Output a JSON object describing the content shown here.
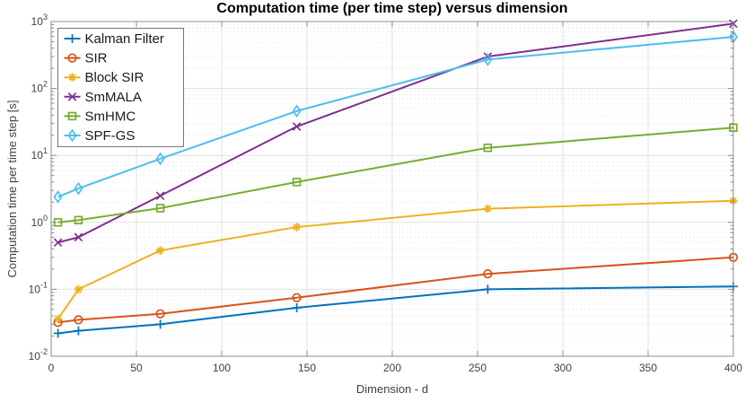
{
  "figure": {
    "title": "Computation time (per time step) versus dimension",
    "xlabel": "Dimension - d",
    "ylabel": "Computation time per time step [s]"
  },
  "chart_data": {
    "type": "line",
    "title": "Computation time (per time step) versus dimension",
    "xlabel": "Dimension - d",
    "ylabel": "Computation time per time step [s]",
    "x_scale": "linear",
    "y_scale": "log10",
    "xlim": [
      0,
      400
    ],
    "ylim": [
      0.01,
      1000
    ],
    "x_ticks": [
      0,
      50,
      100,
      150,
      200,
      250,
      300,
      350,
      400
    ],
    "y_tick_exponents": [
      -2,
      -1,
      0,
      1,
      2,
      3
    ],
    "grid": true,
    "legend_position": "top-left",
    "x": [
      4,
      16,
      64,
      144,
      256,
      400
    ],
    "series": [
      {
        "name": "Kalman Filter",
        "marker": "plus",
        "color": "#0072BD",
        "values": [
          0.022,
          0.024,
          0.03,
          0.053,
          0.1,
          0.11
        ]
      },
      {
        "name": "SIR",
        "marker": "circle",
        "color": "#D95319",
        "values": [
          0.032,
          0.035,
          0.043,
          0.075,
          0.17,
          0.3
        ]
      },
      {
        "name": "Block SIR",
        "marker": "asterisk",
        "color": "#EDB120",
        "values": [
          0.036,
          0.1,
          0.38,
          0.85,
          1.6,
          2.1
        ]
      },
      {
        "name": "SmMALA",
        "marker": "x",
        "color": "#7E2F8E",
        "values": [
          0.5,
          0.6,
          2.5,
          27,
          300,
          930
        ]
      },
      {
        "name": "SmHMC",
        "marker": "square",
        "color": "#77AC30",
        "values": [
          1.0,
          1.08,
          1.63,
          4.0,
          13,
          26
        ]
      },
      {
        "name": "SPF-GS",
        "marker": "diamond",
        "color": "#4DBEEE",
        "values": [
          2.4,
          3.2,
          8.9,
          46,
          270,
          590
        ]
      }
    ],
    "style": {
      "axis_color": "#8c8c8c",
      "tick_label_color": "#404040",
      "grid_major_color": "#e0e0e0",
      "grid_minor_color": "#e8e8e8",
      "legend_border_color": "#777777",
      "legend_text_color": "#1a1a1a",
      "background": "#ffffff"
    }
  }
}
